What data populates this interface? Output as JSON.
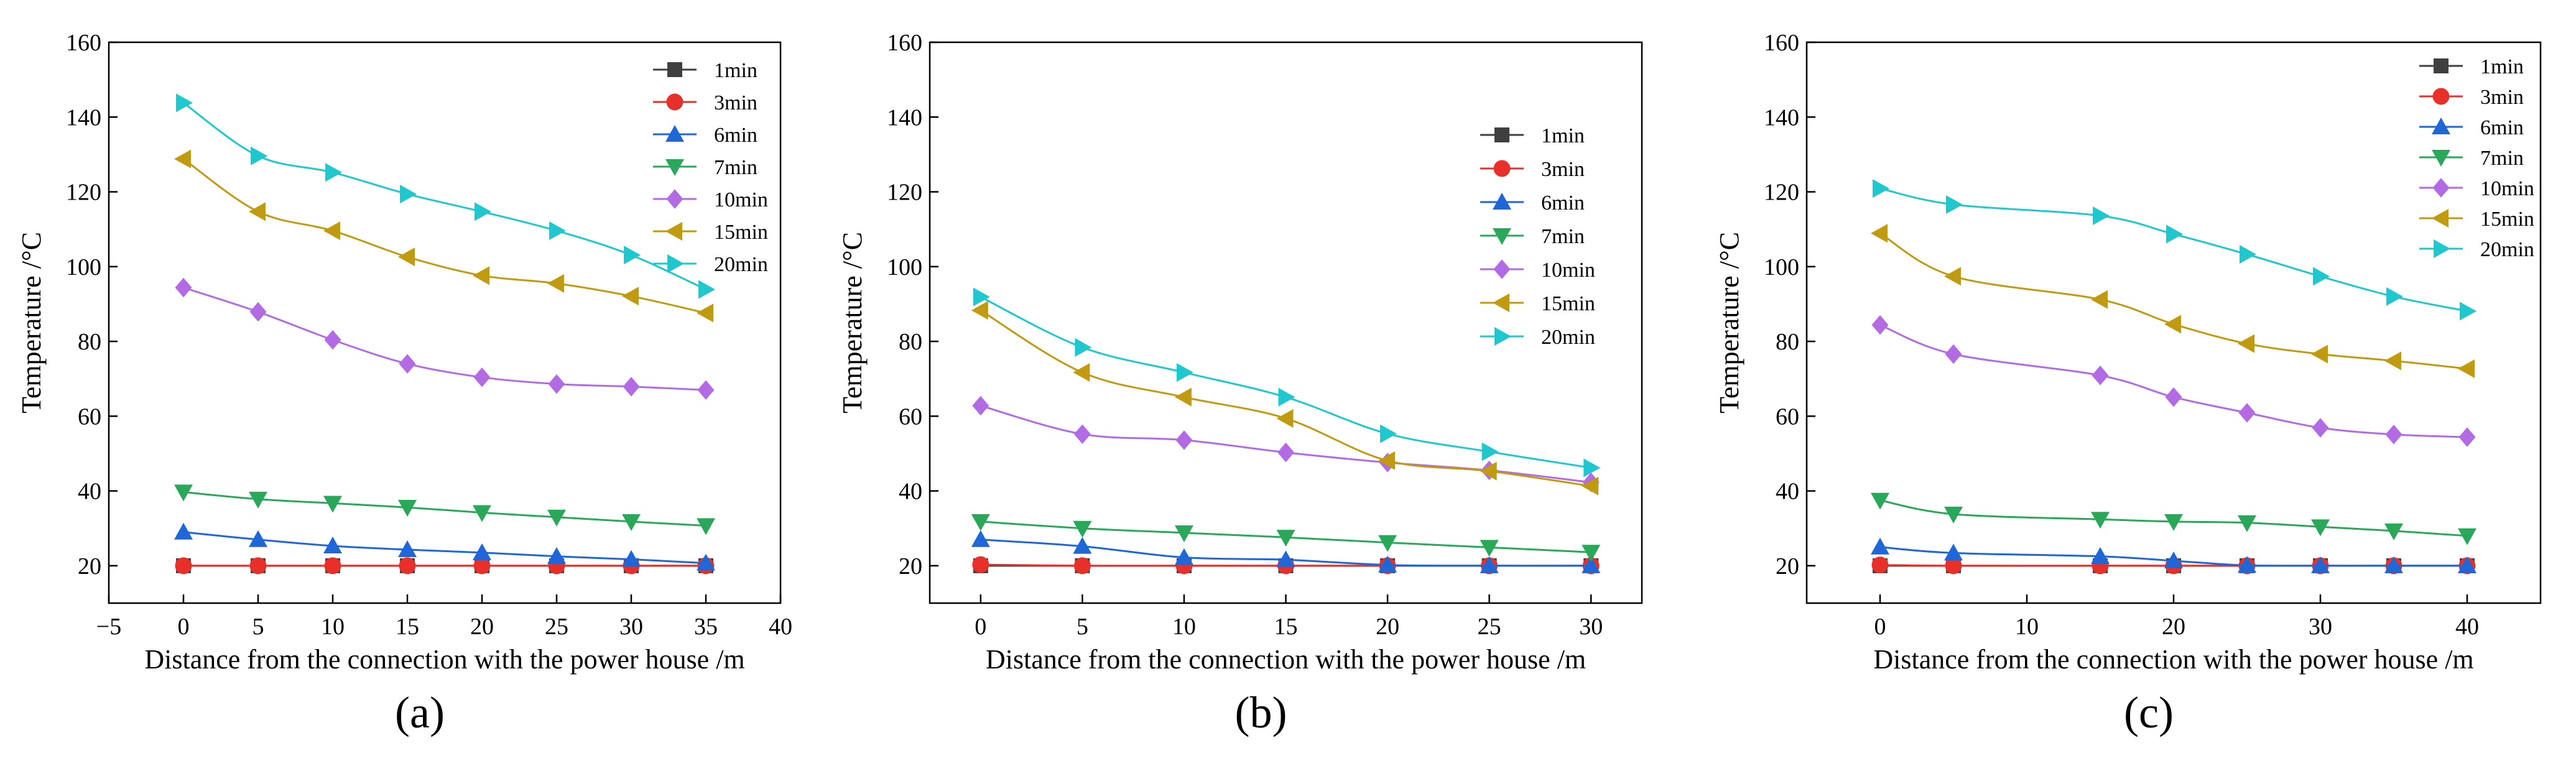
{
  "panels": [
    {
      "label": "(a)",
      "letter": "a"
    },
    {
      "label": "(b)",
      "letter": "b"
    },
    {
      "label": "(c)",
      "letter": "c"
    }
  ],
  "series_style": [
    {
      "name": "1min",
      "color": "#3f3f3f",
      "marker": "square"
    },
    {
      "name": "3min",
      "color": "#e8302a",
      "marker": "circle"
    },
    {
      "name": "6min",
      "color": "#1f66d6",
      "marker": "triangle-up"
    },
    {
      "name": "7min",
      "color": "#2aa85a",
      "marker": "triangle-down"
    },
    {
      "name": "10min",
      "color": "#b26be3",
      "marker": "diamond"
    },
    {
      "name": "15min",
      "color": "#c09a10",
      "marker": "triangle-left"
    },
    {
      "name": "20min",
      "color": "#1fc8cf",
      "marker": "triangle-right"
    }
  ],
  "chart_data": [
    {
      "type": "line",
      "panel": "(a)",
      "xlabel": "Distance from the connection with the power house /m",
      "ylabel": "Temperature /°C",
      "xlim": [
        -5,
        40
      ],
      "ylim": [
        10,
        160
      ],
      "xticks": [
        -5,
        0,
        5,
        10,
        15,
        20,
        25,
        30,
        35,
        40
      ],
      "yticks": [
        20,
        40,
        60,
        80,
        100,
        120,
        140,
        160
      ],
      "legend_position": "top-right",
      "x": [
        0,
        5,
        10,
        15,
        20,
        25,
        30,
        35
      ],
      "series": [
        {
          "name": "1min",
          "values": [
            20,
            20,
            20,
            20,
            20,
            20,
            20,
            20
          ]
        },
        {
          "name": "3min",
          "values": [
            20,
            20,
            20,
            20,
            20,
            20,
            20,
            20
          ]
        },
        {
          "name": "6min",
          "values": [
            29,
            27,
            25.3,
            24.3,
            23.5,
            22.5,
            21.7,
            20.7
          ]
        },
        {
          "name": "7min",
          "values": [
            39.7,
            37.8,
            36.7,
            35.6,
            34.2,
            33,
            31.8,
            30.7
          ]
        },
        {
          "name": "10min",
          "values": [
            94.4,
            87.9,
            80.4,
            74,
            70.4,
            68.6,
            67.9,
            67
          ]
        },
        {
          "name": "15min",
          "values": [
            128.8,
            114.7,
            109.6,
            102.6,
            97.6,
            95.5,
            92.1,
            87.6
          ]
        },
        {
          "name": "20min",
          "values": [
            143.8,
            129.6,
            125.2,
            119.4,
            114.7,
            109.6,
            103.1,
            93.9
          ]
        }
      ]
    },
    {
      "type": "line",
      "panel": "(b)",
      "xlabel": "Distance from the connection with the power house /m",
      "ylabel": "Temperature /°C",
      "xlim": [
        -2.5,
        32.5
      ],
      "ylim": [
        10,
        160
      ],
      "xticks": [
        0,
        5,
        10,
        15,
        20,
        25,
        30
      ],
      "yticks": [
        20,
        40,
        60,
        80,
        100,
        120,
        140,
        160
      ],
      "legend_position": "right",
      "x": [
        0,
        5,
        10,
        15,
        20,
        25,
        30
      ],
      "series": [
        {
          "name": "1min",
          "values": [
            20,
            20,
            20,
            20,
            20,
            20,
            20
          ]
        },
        {
          "name": "3min",
          "values": [
            20.3,
            20,
            20,
            20,
            20,
            20,
            20
          ]
        },
        {
          "name": "6min",
          "values": [
            27,
            25.2,
            22.2,
            21.6,
            20.2,
            20,
            20
          ]
        },
        {
          "name": "7min",
          "values": [
            31.8,
            30,
            28.8,
            27.6,
            26.2,
            24.9,
            23.6
          ]
        },
        {
          "name": "10min",
          "values": [
            62.8,
            55.2,
            53.6,
            50.3,
            47.6,
            45.5,
            42.3
          ]
        },
        {
          "name": "15min",
          "values": [
            88.3,
            71.7,
            65.1,
            59.4,
            48.1,
            45.3,
            41.3
          ]
        },
        {
          "name": "20min",
          "values": [
            91.9,
            78.4,
            71.7,
            65.1,
            55.3,
            50.5,
            46.2
          ]
        }
      ]
    },
    {
      "type": "line",
      "panel": "(c)",
      "xlabel": "Distance from the connection with the power house /m",
      "ylabel": "Temperature /°C",
      "xlim": [
        -5,
        45
      ],
      "ylim": [
        10,
        160
      ],
      "xticks": [
        0,
        10,
        20,
        30,
        40
      ],
      "yticks": [
        20,
        40,
        60,
        80,
        100,
        120,
        140,
        160
      ],
      "legend_position": "top-right",
      "x": [
        0,
        5,
        15,
        20,
        25,
        30,
        35,
        40
      ],
      "series": [
        {
          "name": "1min",
          "values": [
            20,
            20,
            20,
            20,
            20,
            20,
            20,
            20
          ]
        },
        {
          "name": "3min",
          "values": [
            20.2,
            20,
            20,
            20,
            20,
            20,
            20,
            20
          ]
        },
        {
          "name": "6min",
          "values": [
            25,
            23.4,
            22.5,
            21.3,
            20.1,
            20,
            20,
            20
          ]
        },
        {
          "name": "7min",
          "values": [
            37.5,
            33.8,
            32.4,
            31.8,
            31.5,
            30.4,
            29.3,
            28
          ]
        },
        {
          "name": "10min",
          "values": [
            84.4,
            76.6,
            70.9,
            65.1,
            60.9,
            56.9,
            55.1,
            54.4
          ]
        },
        {
          "name": "15min",
          "values": [
            108.9,
            97.4,
            91.2,
            84.6,
            79.4,
            76.6,
            74.8,
            72.7
          ]
        },
        {
          "name": "20min",
          "values": [
            120.9,
            116.6,
            113.6,
            108.7,
            103.3,
            97.4,
            92,
            88.1
          ]
        }
      ]
    }
  ]
}
